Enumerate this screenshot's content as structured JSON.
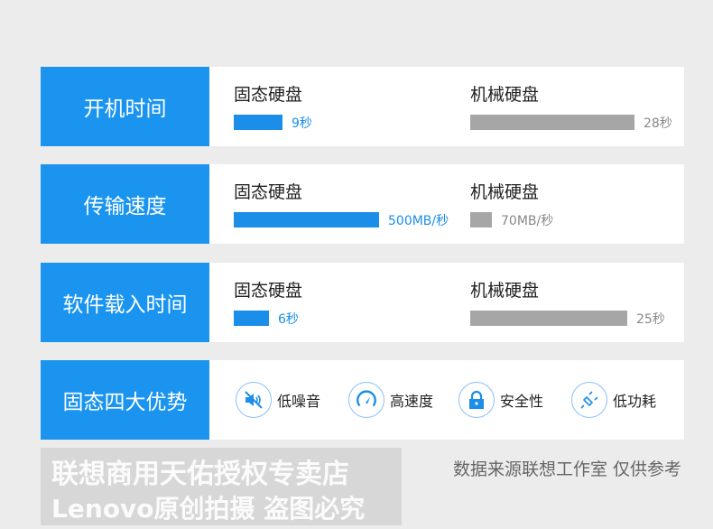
{
  "chart_data": {
    "type": "bar",
    "series": [
      {
        "name": "固态硬盘"
      },
      {
        "name": "机械硬盘"
      }
    ],
    "rows": [
      {
        "category": "开机时间",
        "ssd": {
          "label": "固态硬盘",
          "value": 9,
          "text": "9秒"
        },
        "hdd": {
          "label": "机械硬盘",
          "value": 28,
          "text": "28秒"
        }
      },
      {
        "category": "传输速度",
        "ssd": {
          "label": "固态硬盘",
          "value": 500,
          "text": "500MB/秒"
        },
        "hdd": {
          "label": "机械硬盘",
          "value": 70,
          "text": "70MB/秒"
        }
      },
      {
        "category": "软件载入时间",
        "ssd": {
          "label": "固态硬盘",
          "value": 6,
          "text": "6秒"
        },
        "hdd": {
          "label": "机械硬盘",
          "value": 25,
          "text": "25秒"
        }
      }
    ]
  },
  "features": {
    "title": "固态四大优势",
    "items": [
      {
        "icon": "mute-speaker-icon",
        "label": "低噪音"
      },
      {
        "icon": "speedometer-icon",
        "label": "高速度"
      },
      {
        "icon": "lock-icon",
        "label": "安全性"
      },
      {
        "icon": "plug-icon",
        "label": "低功耗"
      }
    ]
  },
  "watermark": {
    "line1": "联想商用天佑授权专卖店",
    "line2": "Lenovo原创拍摄  盗图必究"
  },
  "source_note": "数据来源联想工作室  仅供参考",
  "colors": {
    "ssd": "#1a8ee8",
    "hdd": "#a6a6a6",
    "header": "#1a94ef"
  }
}
